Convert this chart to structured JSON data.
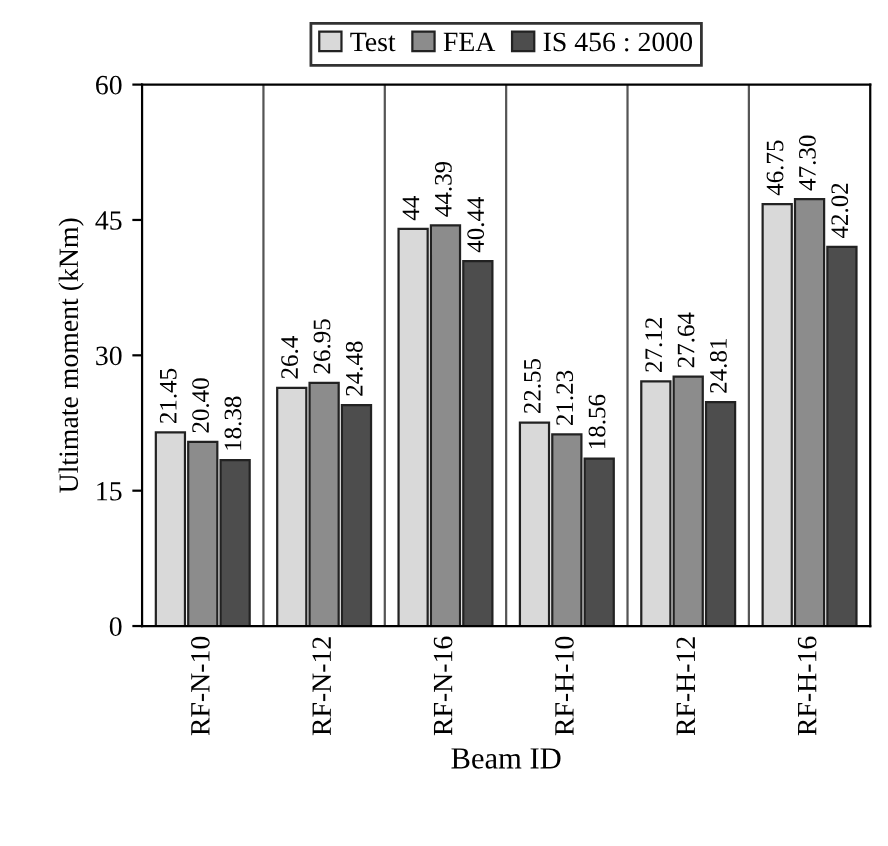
{
  "chart_data": {
    "type": "bar",
    "xlabel": "Beam ID",
    "ylabel": "Ultimate moment (kNm)",
    "categories": [
      "RF-N-10",
      "RF-N-12",
      "RF-N-16",
      "RF-H-10",
      "RF-H-12",
      "RF-H-16"
    ],
    "series": [
      {
        "name": "Test",
        "color": "#d9d9d9",
        "values": [
          21.45,
          26.4,
          44,
          22.55,
          27.12,
          46.75
        ],
        "value_labels": [
          "21.45",
          "26.4",
          "44",
          "22.55",
          "27.12",
          "46.75"
        ]
      },
      {
        "name": "FEA",
        "color": "#8c8c8c",
        "values": [
          20.4,
          26.95,
          44.39,
          21.23,
          27.64,
          47.3
        ],
        "value_labels": [
          "20.40",
          "26.95",
          "44.39",
          "21.23",
          "27.64",
          "47.30"
        ]
      },
      {
        "name": "IS 456 : 2000",
        "color": "#4d4d4d",
        "values": [
          18.38,
          24.48,
          40.44,
          18.56,
          24.81,
          42.02
        ],
        "value_labels": [
          "18.38",
          "24.48",
          "40.44",
          "18.56",
          "24.81",
          "42.02"
        ]
      }
    ],
    "ylim": [
      0,
      60
    ],
    "yticks": [
      0,
      15,
      30,
      45,
      60
    ],
    "grid": "x",
    "legend": "top"
  }
}
